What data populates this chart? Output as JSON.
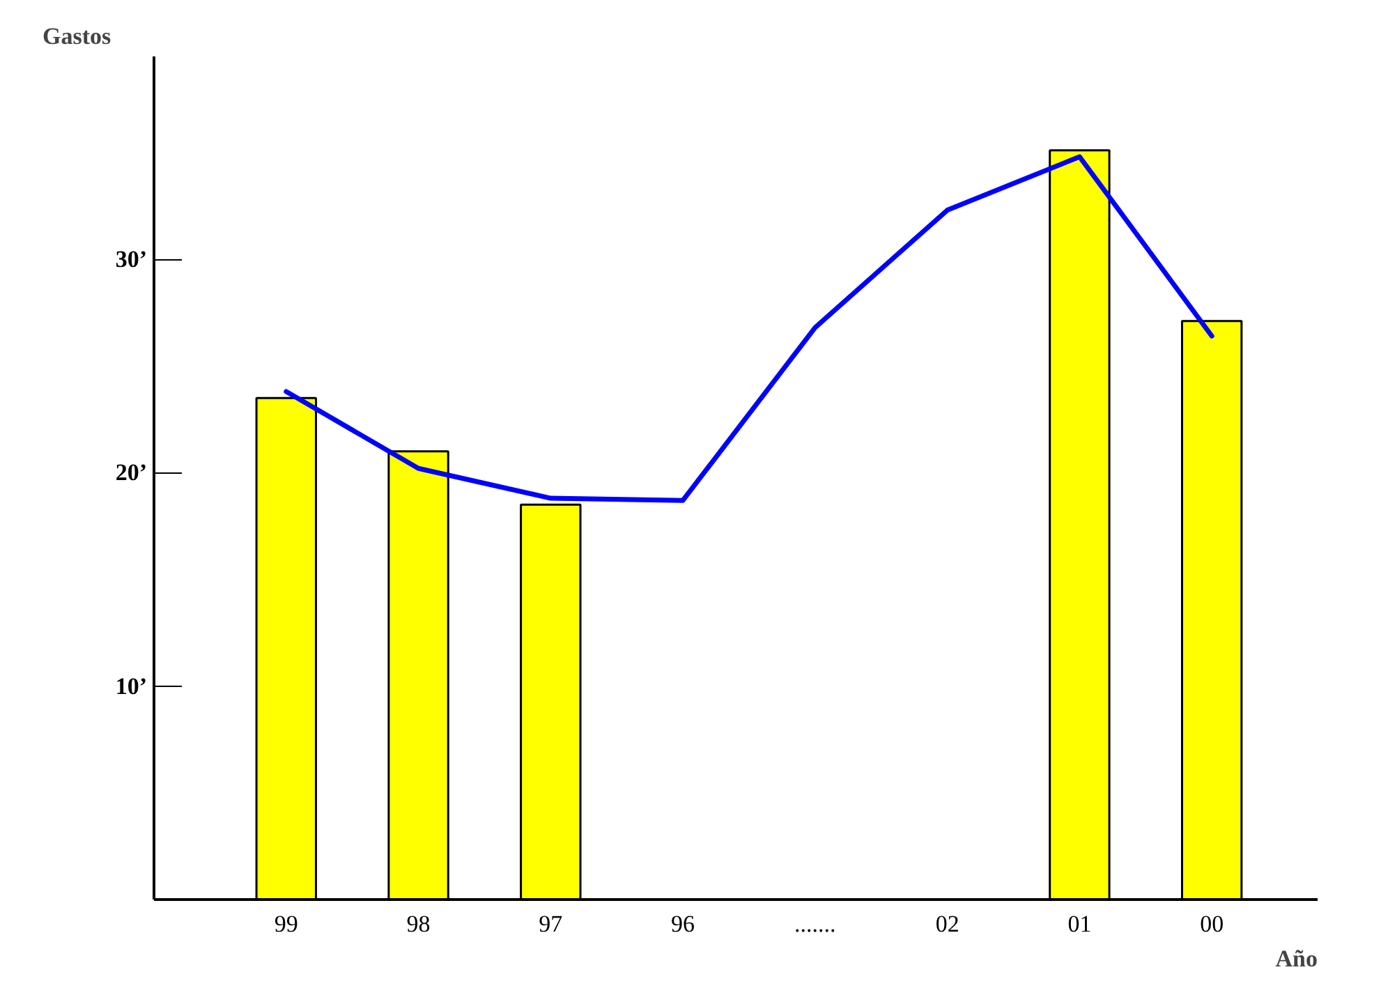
{
  "chart_data": {
    "type": "bar",
    "xlabel": "Año",
    "ylabel": "Gastos",
    "categories": [
      "99",
      "98",
      "97",
      "96",
      ".......",
      "02",
      "01",
      "00"
    ],
    "ylim": [
      0,
      39.5
    ],
    "yticks": [
      {
        "value": 10,
        "label": "10’"
      },
      {
        "value": 20,
        "label": "20’"
      },
      {
        "value": 30,
        "label": "30’"
      }
    ],
    "series": [
      {
        "color": "#ffff00",
        "values": [
          23.5,
          21.0,
          18.5,
          null,
          null,
          null,
          35.1,
          27.1
        ]
      },
      {
        "type": "line",
        "color": "#0000ff",
        "values": [
          23.8,
          20.2,
          18.8,
          18.7,
          26.8,
          32.3,
          34.8,
          26.4
        ]
      }
    ],
    "grid": false,
    "marker": "none",
    "line_style": "solid"
  }
}
